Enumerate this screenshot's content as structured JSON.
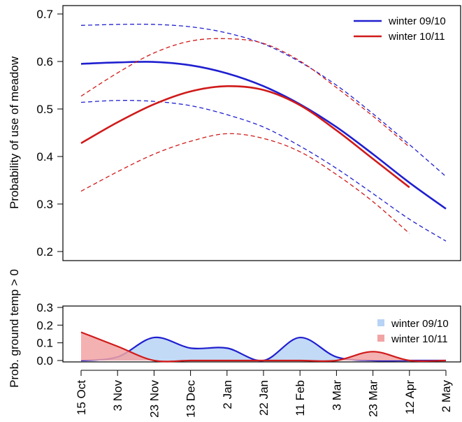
{
  "charts": [
    {
      "id": "top",
      "chart_data": {
        "type": "line",
        "title": "",
        "xlabel": "",
        "ylabel": "Probability of use of meadow",
        "ylim": [
          0.2,
          0.7
        ],
        "yticks": [
          "0.2",
          "0.3",
          "0.4",
          "0.5",
          "0.6",
          "0.7"
        ],
        "grid": false,
        "legend_position": "top-right",
        "series": [
          {
            "name": "winter 09/10",
            "color": "#1f1fd0",
            "style": "solid",
            "points": [
              [
                "15 Oct",
                0.595
              ],
              [
                "3 Nov",
                0.598
              ],
              [
                "23 Nov",
                0.599
              ],
              [
                "13 Dec",
                0.592
              ],
              [
                "2 Jan",
                0.575
              ],
              [
                "22 Jan",
                0.548
              ],
              [
                "11 Feb",
                0.51
              ],
              [
                "3 Mar",
                0.462
              ],
              [
                "23 Mar",
                0.405
              ],
              [
                "12 Apr",
                0.345
              ],
              [
                "2 May",
                0.29
              ]
            ]
          },
          {
            "name": "",
            "color": "#1f1fd0",
            "style": "dashed",
            "points": [
              [
                "15 Oct",
                0.676
              ],
              [
                "3 Nov",
                0.678
              ],
              [
                "23 Nov",
                0.678
              ],
              [
                "13 Dec",
                0.673
              ],
              [
                "2 Jan",
                0.66
              ],
              [
                "22 Jan",
                0.637
              ],
              [
                "11 Feb",
                0.599
              ],
              [
                "3 Mar",
                0.55
              ],
              [
                "23 Mar",
                0.49
              ],
              [
                "12 Apr",
                0.425
              ],
              [
                "2 May",
                0.358
              ]
            ]
          },
          {
            "name": "",
            "color": "#1f1fd0",
            "style": "dashed",
            "points": [
              [
                "15 Oct",
                0.514
              ],
              [
                "3 Nov",
                0.518
              ],
              [
                "23 Nov",
                0.516
              ],
              [
                "13 Dec",
                0.507
              ],
              [
                "2 Jan",
                0.488
              ],
              [
                "22 Jan",
                0.462
              ],
              [
                "11 Feb",
                0.422
              ],
              [
                "3 Mar",
                0.375
              ],
              [
                "23 Mar",
                0.322
              ],
              [
                "12 Apr",
                0.268
              ],
              [
                "2 May",
                0.222
              ]
            ]
          },
          {
            "name": "winter 10/11",
            "color": "#d01a1a",
            "style": "solid",
            "points": [
              [
                "15 Oct",
                0.428
              ],
              [
                "3 Nov",
                0.472
              ],
              [
                "23 Nov",
                0.51
              ],
              [
                "13 Dec",
                0.537
              ],
              [
                "2 Jan",
                0.548
              ],
              [
                "22 Jan",
                0.54
              ],
              [
                "11 Feb",
                0.508
              ],
              [
                "3 Mar",
                0.455
              ],
              [
                "23 Mar",
                0.395
              ],
              [
                "12 Apr",
                0.335
              ]
            ]
          },
          {
            "name": "",
            "color": "#d01a1a",
            "style": "dashed",
            "points": [
              [
                "15 Oct",
                0.527
              ],
              [
                "3 Nov",
                0.576
              ],
              [
                "23 Nov",
                0.618
              ],
              [
                "13 Dec",
                0.643
              ],
              [
                "2 Jan",
                0.648
              ],
              [
                "22 Jan",
                0.638
              ],
              [
                "11 Feb",
                0.601
              ],
              [
                "3 Mar",
                0.545
              ],
              [
                "23 Mar",
                0.485
              ],
              [
                "12 Apr",
                0.42
              ]
            ]
          },
          {
            "name": "",
            "color": "#d01a1a",
            "style": "dashed",
            "points": [
              [
                "15 Oct",
                0.327
              ],
              [
                "3 Nov",
                0.368
              ],
              [
                "23 Nov",
                0.405
              ],
              [
                "13 Dec",
                0.432
              ],
              [
                "2 Jan",
                0.448
              ],
              [
                "22 Jan",
                0.438
              ],
              [
                "11 Feb",
                0.41
              ],
              [
                "3 Mar",
                0.362
              ],
              [
                "23 Mar",
                0.305
              ],
              [
                "12 Apr",
                0.238
              ]
            ]
          }
        ]
      }
    },
    {
      "id": "bottom",
      "chart_data": {
        "type": "area",
        "title": "",
        "xlabel": "",
        "ylabel": "Prob. ground temp > 0",
        "ylim": [
          0,
          0.3
        ],
        "yticks": [
          "0.0",
          "0.1",
          "0.2",
          "0.3"
        ],
        "categories": [
          "15 Oct",
          "3 Nov",
          "23 Nov",
          "13 Dec",
          "2 Jan",
          "22 Jan",
          "11 Feb",
          "3 Mar",
          "23 Mar",
          "12 Apr",
          "2 May"
        ],
        "legend_position": "top-right",
        "series": [
          {
            "name": "winter 09/10",
            "color": "#1f1fd0",
            "fill": "#b7d3f5",
            "points": [
              [
                "15 Oct",
                0.0
              ],
              [
                "3 Nov",
                0.02
              ],
              [
                "23 Nov",
                0.13
              ],
              [
                "13 Dec",
                0.07
              ],
              [
                "2 Jan",
                0.07
              ],
              [
                "22 Jan",
                0.0
              ],
              [
                "11 Feb",
                0.13
              ],
              [
                "3 Mar",
                0.02
              ],
              [
                "23 Mar",
                0.0
              ],
              [
                "12 Apr",
                0.0
              ],
              [
                "2 May",
                0.0
              ]
            ]
          },
          {
            "name": "winter 10/11",
            "color": "#d01a1a",
            "fill": "#f2a3a3",
            "points": [
              [
                "15 Oct",
                0.16
              ],
              [
                "3 Nov",
                0.08
              ],
              [
                "23 Nov",
                0.0
              ],
              [
                "13 Dec",
                0.0
              ],
              [
                "2 Jan",
                0.0
              ],
              [
                "22 Jan",
                0.0
              ],
              [
                "11 Feb",
                0.0
              ],
              [
                "3 Mar",
                0.0
              ],
              [
                "23 Mar",
                0.05
              ],
              [
                "12 Apr",
                0.0
              ],
              [
                "2 May",
                0.0
              ]
            ]
          }
        ]
      }
    }
  ],
  "legends": {
    "top": [
      {
        "label": "winter 09/10",
        "color": "#1f1fd0"
      },
      {
        "label": "winter 10/11",
        "color": "#d01a1a"
      }
    ],
    "bottom": [
      {
        "label": "winter 09/10",
        "color": "#b7d3f5"
      },
      {
        "label": "winter 10/11",
        "color": "#f2a3a3"
      }
    ]
  }
}
